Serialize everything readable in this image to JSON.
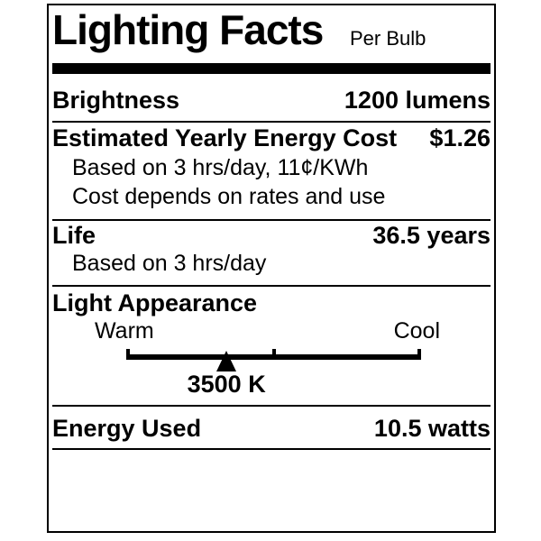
{
  "label": {
    "title": "Lighting Facts",
    "subtitle": "Per Bulb",
    "brightness": {
      "name": "Brightness",
      "value": "1200 lumens"
    },
    "energy_cost": {
      "name": "Estimated Yearly Energy Cost",
      "value": "$1.26",
      "note1": "Based on 3 hrs/day, 11¢/KWh",
      "note2": "Cost depends on rates and use"
    },
    "life": {
      "name": "Life",
      "value": "36.5 years",
      "note": "Based on 3 hrs/day"
    },
    "light_appearance": {
      "name": "Light Appearance",
      "warm_label": "Warm",
      "cool_label": "Cool",
      "color_temp": "3500 K",
      "marker_percent": 34
    },
    "energy_used": {
      "name": "Energy Used",
      "value": "10.5 watts"
    }
  },
  "colors": {
    "ink": "#000000",
    "paper": "#ffffff"
  }
}
